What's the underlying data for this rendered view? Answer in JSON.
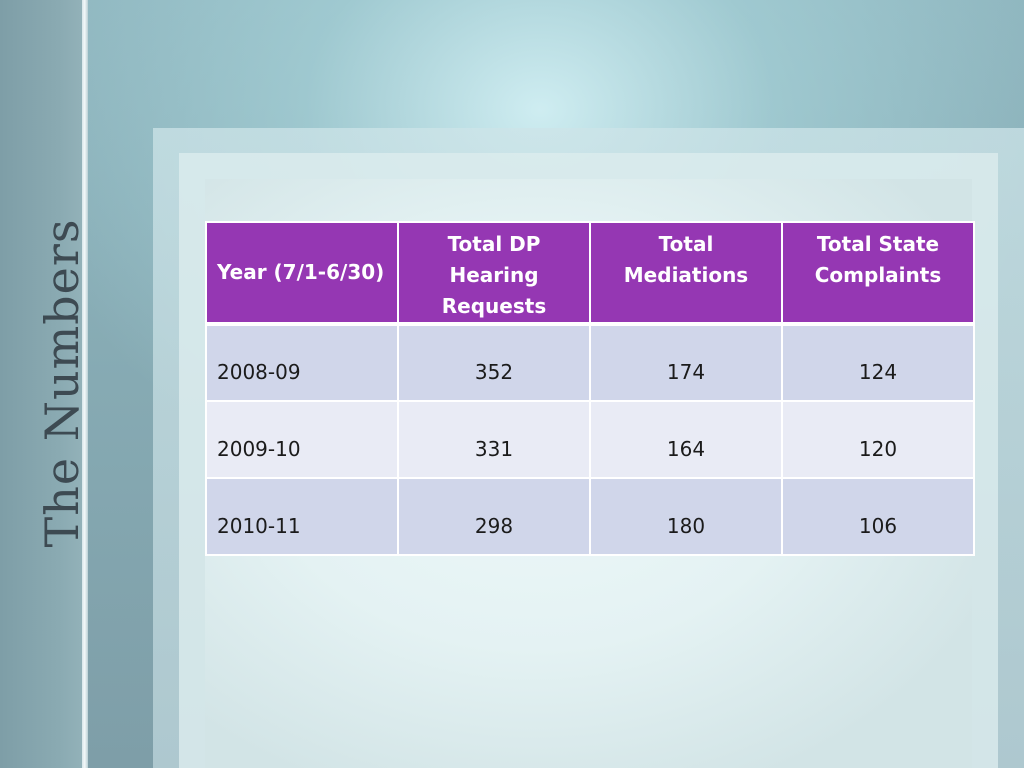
{
  "slide": {
    "title": "The Numbers"
  },
  "table": {
    "headers": [
      "Year (7/1-6/30)",
      "Total DP Hearing Requests",
      "Total Mediations",
      "Total State Complaints"
    ],
    "rows": [
      [
        "2008-09",
        "352",
        "174",
        "124"
      ],
      [
        "2009-10",
        "331",
        "164",
        "120"
      ],
      [
        "2010-11",
        "298",
        "180",
        "106"
      ]
    ]
  },
  "colors": {
    "header_bg": "#9537b3",
    "row_odd_bg": "#d0d6ea",
    "row_even_bg": "#e9ebf5",
    "title_text": "#3d4a52"
  }
}
